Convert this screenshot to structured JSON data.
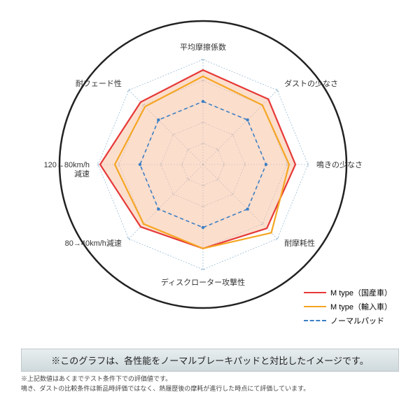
{
  "radar": {
    "type": "radar",
    "axes": [
      "平均摩擦係数",
      "ダストの少なさ",
      "鳴きの少なさ",
      "耐摩耗性",
      "ディスクローター攻撃性",
      "80→40km/h減速",
      "120→80km/h\n減速",
      "耐フェード性"
    ],
    "max_value": 5,
    "grid_levels": 5,
    "series": [
      {
        "name": "M type（国産車）",
        "color": "#e63838",
        "dash": "none",
        "width": 2.2,
        "fill": "rgba(249,194,164,0.55)",
        "values": [
          4.5,
          4.4,
          4.4,
          4.3,
          4.0,
          4.2,
          4.9,
          4.2
        ]
      },
      {
        "name": "M type（輸入車）",
        "color": "#f5a623",
        "dash": "none",
        "width": 2.2,
        "fill": "none",
        "values": [
          4.2,
          4.0,
          4.1,
          4.6,
          4.0,
          4.0,
          4.2,
          3.9
        ]
      },
      {
        "name": "ノーマルパッド",
        "color": "#3b7fc4",
        "dash": "5,4",
        "width": 1.6,
        "fill": "none",
        "values": [
          3.0,
          3.0,
          3.0,
          3.0,
          3.0,
          3.0,
          3.0,
          3.0
        ]
      }
    ],
    "outer_circle_color": "#222222",
    "outer_circle_width": 2.5,
    "grid_color": "#7ca8c9",
    "grid_width": 0.6,
    "axis_dash": "2,2",
    "label_fontsize": 11,
    "label_color": "#333333",
    "background": "#ffffff",
    "marker_radius": 2.2
  },
  "caption": "※このグラフは、各性能をノーマルブレーキパッドと対比したイメージです。",
  "footnotes": [
    "※上記数値はあくまでテスト条件下での評価値です。",
    "鳴き、ダストの比較条件は新品時評価ではなく、熱履歴後の摩耗が進行した時点にて評価しています。"
  ]
}
